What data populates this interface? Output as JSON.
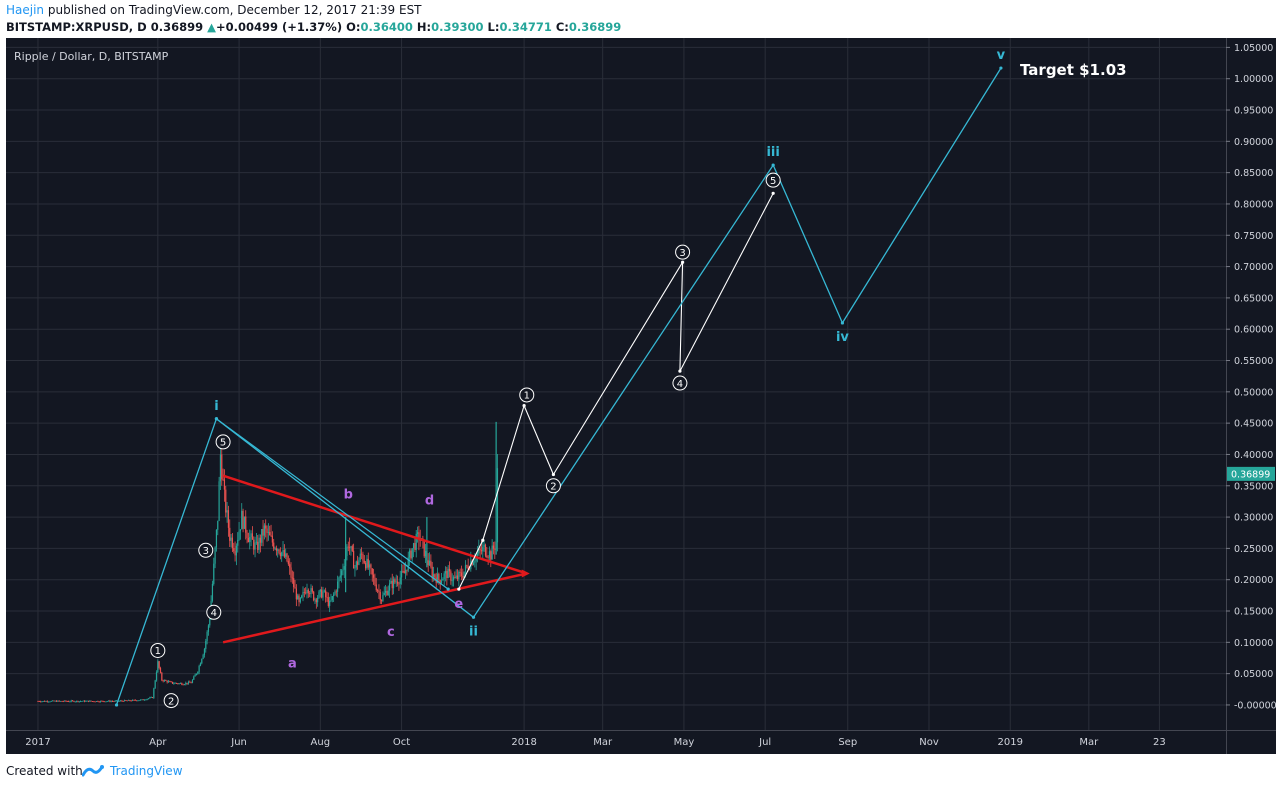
{
  "header": {
    "author": "Haejin",
    "published": "published on TradingView.com, December 12, 2017 21:39 EST",
    "symbol": "BITSTAMP:XRPUSD, D",
    "last": "0.36899",
    "change": "+0.00499 (+1.37%)",
    "o_label": "O:",
    "o_val": "0.36400",
    "h_label": "H:",
    "h_val": "0.39300",
    "l_label": "L:",
    "l_val": "0.34771",
    "c_label": "C:",
    "c_val": "0.36899"
  },
  "footer": {
    "created_with": "Created with",
    "brand": "TradingView"
  },
  "colors": {
    "background": "#131722",
    "grid": "#2a2e39",
    "wave": "#36b8d4",
    "subwave": "#ffffff",
    "triangle": "#e0191c",
    "abcde": "#b068e0",
    "candle_up": "#26a69a",
    "candle_down": "#ef5350",
    "price_label": "#26a69a"
  },
  "chart_data": {
    "type": "candlestick",
    "title": "Ripple / Dollar, D, BITSTAMP",
    "annotation": "Target $1.03",
    "x_ticks": [
      "2017",
      "Apr",
      "Jun",
      "Aug",
      "Oct",
      "2018",
      "Mar",
      "May",
      "Jul",
      "Sep",
      "Nov",
      "2019",
      "Mar",
      "23"
    ],
    "x_tick_dates": [
      "2017-01-01",
      "2017-04-01",
      "2017-06-01",
      "2017-08-01",
      "2017-10-01",
      "2018-01-01",
      "2018-03-01",
      "2018-05-01",
      "2018-07-01",
      "2018-09-01",
      "2018-11-01",
      "2019-01-01",
      "2019-03-01",
      "2019-04-23"
    ],
    "y_ticks": [
      "1.05000",
      "1.00000",
      "0.95000",
      "0.90000",
      "0.85000",
      "0.80000",
      "0.75000",
      "0.70000",
      "0.65000",
      "0.60000",
      "0.55000",
      "0.50000",
      "0.45000",
      "0.40000",
      "0.35000",
      "0.30000",
      "0.25000",
      "0.20000",
      "0.15000",
      "0.10000",
      "0.05000",
      "-0.00000"
    ],
    "y_range": [
      -0.04,
      1.065
    ],
    "x_range": [
      "2016-12-08",
      "2019-06-12"
    ],
    "last_price": "0.36899",
    "grid": true,
    "price_path": [
      [
        "2017-01-01",
        0.006
      ],
      [
        "2017-02-01",
        0.006
      ],
      [
        "2017-03-01",
        0.006
      ],
      [
        "2017-03-20",
        0.008
      ],
      [
        "2017-03-28",
        0.012
      ],
      [
        "2017-04-01",
        0.068
      ],
      [
        "2017-04-04",
        0.04
      ],
      [
        "2017-04-12",
        0.035
      ],
      [
        "2017-04-20",
        0.034
      ],
      [
        "2017-04-26",
        0.036
      ],
      [
        "2017-05-01",
        0.055
      ],
      [
        "2017-05-06",
        0.09
      ],
      [
        "2017-05-10",
        0.14
      ],
      [
        "2017-05-13",
        0.22
      ],
      [
        "2017-05-16",
        0.3
      ],
      [
        "2017-05-18",
        0.4
      ],
      [
        "2017-05-21",
        0.33
      ],
      [
        "2017-05-25",
        0.27
      ],
      [
        "2017-05-29",
        0.25
      ],
      [
        "2017-06-03",
        0.3
      ],
      [
        "2017-06-08",
        0.27
      ],
      [
        "2017-06-14",
        0.25
      ],
      [
        "2017-06-20",
        0.28
      ],
      [
        "2017-06-26",
        0.26
      ],
      [
        "2017-07-01",
        0.25
      ],
      [
        "2017-07-07",
        0.23
      ],
      [
        "2017-07-12",
        0.19
      ],
      [
        "2017-07-16",
        0.16
      ],
      [
        "2017-07-22",
        0.19
      ],
      [
        "2017-07-28",
        0.17
      ],
      [
        "2017-08-03",
        0.18
      ],
      [
        "2017-08-08",
        0.16
      ],
      [
        "2017-08-12",
        0.18
      ],
      [
        "2017-08-18",
        0.22
      ],
      [
        "2017-08-22",
        0.26
      ],
      [
        "2017-08-27",
        0.22
      ],
      [
        "2017-09-01",
        0.24
      ],
      [
        "2017-09-06",
        0.22
      ],
      [
        "2017-09-12",
        0.19
      ],
      [
        "2017-09-16",
        0.17
      ],
      [
        "2017-09-22",
        0.19
      ],
      [
        "2017-09-28",
        0.2
      ],
      [
        "2017-10-03",
        0.21
      ],
      [
        "2017-10-09",
        0.25
      ],
      [
        "2017-10-14",
        0.27
      ],
      [
        "2017-10-19",
        0.24
      ],
      [
        "2017-10-24",
        0.21
      ],
      [
        "2017-10-29",
        0.2
      ],
      [
        "2017-11-04",
        0.21
      ],
      [
        "2017-11-10",
        0.2
      ],
      [
        "2017-11-16",
        0.21
      ],
      [
        "2017-11-22",
        0.23
      ],
      [
        "2017-11-27",
        0.24
      ],
      [
        "2017-12-02",
        0.25
      ],
      [
        "2017-12-07",
        0.24
      ],
      [
        "2017-12-11",
        0.26
      ],
      [
        "2017-12-12",
        0.369
      ]
    ],
    "spikes": [
      [
        "2017-12-11",
        0.24,
        0.452
      ],
      [
        "2017-10-20",
        0.22,
        0.3
      ],
      [
        "2017-08-20",
        0.18,
        0.3
      ]
    ],
    "cyan_wave": [
      [
        "2017-03-01",
        0.0
      ],
      [
        "2017-05-15",
        0.457
      ],
      [
        "2017-11-24",
        0.14
      ],
      [
        "2018-07-07",
        0.862
      ],
      [
        "2018-08-28",
        0.61
      ],
      [
        "2018-12-25",
        1.017
      ]
    ],
    "cyan_extra_line": [
      [
        "2017-05-15",
        0.457
      ],
      [
        "2017-11-05",
        0.185
      ]
    ],
    "white_wave": [
      [
        "2017-11-13",
        0.185
      ],
      [
        "2017-12-01",
        0.263
      ],
      [
        "2018-01-01",
        0.478
      ],
      [
        "2018-01-23",
        0.368
      ],
      [
        "2018-04-30",
        0.707
      ],
      [
        "2018-04-28",
        0.533
      ],
      [
        "2018-07-07",
        0.817
      ]
    ],
    "triangle_lines": [
      [
        [
          "2017-05-20",
          0.366
        ],
        [
          "2018-01-03",
          0.21
        ]
      ],
      [
        [
          "2017-05-20",
          0.1
        ],
        [
          "2018-01-03",
          0.21
        ]
      ]
    ],
    "cyan_labels": [
      {
        "text": "i",
        "x": "2017-05-15",
        "y": 0.457,
        "pos": "above"
      },
      {
        "text": "ii",
        "x": "2017-11-24",
        "y": 0.14,
        "pos": "below"
      },
      {
        "text": "iii",
        "x": "2018-07-07",
        "y": 0.862,
        "pos": "above"
      },
      {
        "text": "iv",
        "x": "2018-08-28",
        "y": 0.61,
        "pos": "below"
      },
      {
        "text": "v",
        "x": "2018-12-25",
        "y": 1.017,
        "pos": "above"
      }
    ],
    "abcde_labels": [
      {
        "text": "a",
        "x": "2017-07-11",
        "y": 0.06
      },
      {
        "text": "b",
        "x": "2017-08-22",
        "y": 0.33
      },
      {
        "text": "c",
        "x": "2017-09-23",
        "y": 0.11
      },
      {
        "text": "d",
        "x": "2017-10-22",
        "y": 0.32
      },
      {
        "text": "e",
        "x": "2017-11-13",
        "y": 0.155
      }
    ],
    "circle_labels": [
      {
        "text": "1",
        "x": "2017-04-01",
        "y": 0.087
      },
      {
        "text": "2",
        "x": "2017-04-11",
        "y": 0.007
      },
      {
        "text": "3",
        "x": "2017-05-07",
        "y": 0.247
      },
      {
        "text": "4",
        "x": "2017-05-13",
        "y": 0.148
      },
      {
        "text": "5",
        "x": "2017-05-20",
        "y": 0.42
      },
      {
        "text": "1",
        "x": "2018-01-03",
        "y": 0.495
      },
      {
        "text": "2",
        "x": "2018-01-23",
        "y": 0.35
      },
      {
        "text": "3",
        "x": "2018-04-30",
        "y": 0.723
      },
      {
        "text": "4",
        "x": "2018-04-28",
        "y": 0.514
      },
      {
        "text": "5",
        "x": "2018-07-07",
        "y": 0.838
      }
    ]
  }
}
